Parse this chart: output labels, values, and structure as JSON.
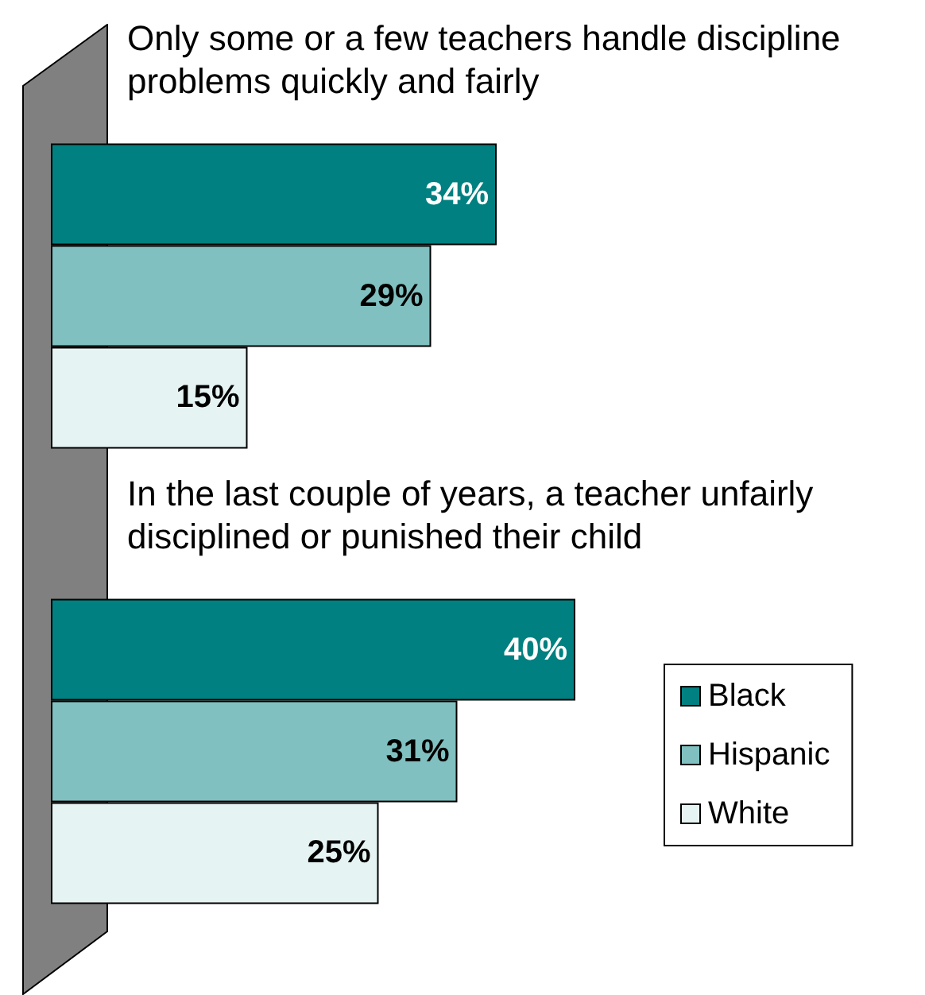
{
  "chart_data": {
    "type": "bar",
    "orientation": "horizontal",
    "categories": [
      "Only some or a few teachers handle discipline problems quickly and fairly",
      "In the last couple of years, a teacher unfairly disciplined or punished their child"
    ],
    "series": [
      {
        "name": "Black",
        "color": "#008080",
        "values": [
          34,
          40
        ],
        "value_labels": [
          "34%",
          "40%"
        ]
      },
      {
        "name": "Hispanic",
        "color": "#80c0c0",
        "values": [
          29,
          31
        ],
        "value_labels": [
          "29%",
          "31%"
        ]
      },
      {
        "name": "White",
        "color": "#e6f3f3",
        "values": [
          15,
          25
        ],
        "value_labels": [
          "15%",
          "25%"
        ]
      }
    ],
    "legend": "right",
    "tick_labels": "y"
  }
}
